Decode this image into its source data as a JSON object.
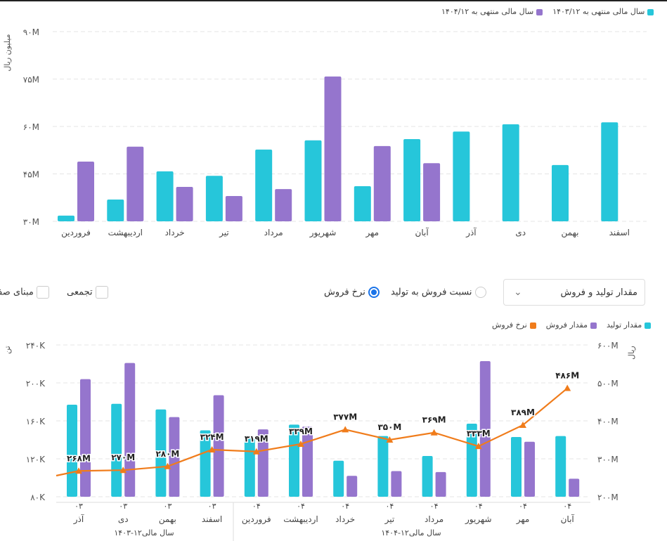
{
  "colors": {
    "cyan": "#26c6da",
    "purple": "#9575cd",
    "orange": "#f07c1b",
    "grid": "#e5e5e5"
  },
  "chart_data": [
    {
      "type": "bar",
      "legend": [
        "سال مالی منتهی به ۱۴۰۴/۱۲",
        "سال مالی منتهی به ۱۴۰۳/۱۲"
      ],
      "legend_position": "top-right",
      "ylabel": "میلیون ریال",
      "yticks": [
        "۳۰M",
        "۴۵M",
        "۶۰M",
        "۷۵M",
        "۹۰M"
      ],
      "ylim": [
        30,
        90
      ],
      "categories": [
        "فروردین",
        "اردیبهشت",
        "خرداد",
        "تیر",
        "مرداد",
        "شهریور",
        "مهر",
        "آبان",
        "آذر",
        "دی",
        "بهمن",
        "اسفند"
      ],
      "series": [
        {
          "name": "سال مالی منتهی به ۱۴۰۳/۱۲",
          "color": "#26c6da",
          "values": [
            31.8,
            36.9,
            45.8,
            44.4,
            52.7,
            55.6,
            41.1,
            56,
            58.4,
            60.7,
            47.8,
            61.3
          ]
        },
        {
          "name": "سال مالی منتهی به ۱۴۰۴/۱۲",
          "color": "#9575cd",
          "values": [
            48.9,
            53.6,
            40.9,
            38,
            40.2,
            75.8,
            53.8,
            48.4,
            null,
            null,
            null,
            null
          ]
        }
      ],
      "grid": true
    },
    {
      "type": "bar+line",
      "legend": [
        "مقدار تولید",
        "مقدار فروش",
        "نرخ فروش"
      ],
      "legend_position": "top-right",
      "ylabel_left": "تن",
      "ylabel_right": "ریال",
      "yticks_left": [
        "۸۰K",
        "۱۲۰K",
        "۱۶۰K",
        "۲۰۰K",
        "۲۴۰K"
      ],
      "yticks_right": [
        "۲۰۰M",
        "۳۰۰M",
        "۴۰۰M",
        "۵۰۰M",
        "۶۰۰M"
      ],
      "ylim_left": [
        80,
        240
      ],
      "ylim_right": [
        200,
        600
      ],
      "categories": [
        {
          "year": "۰۳",
          "month": "آذر"
        },
        {
          "year": "۰۳",
          "month": "دی"
        },
        {
          "year": "۰۳",
          "month": "بهمن"
        },
        {
          "year": "۰۳",
          "month": "اسفند"
        },
        {
          "year": "۰۴",
          "month": "فروردین"
        },
        {
          "year": "۰۴",
          "month": "اردیبهشت"
        },
        {
          "year": "۰۴",
          "month": "خرداد"
        },
        {
          "year": "۰۴",
          "month": "تیر"
        },
        {
          "year": "۰۴",
          "month": "مرداد"
        },
        {
          "year": "۰۴",
          "month": "شهریور"
        },
        {
          "year": "۰۴",
          "month": "مهر"
        },
        {
          "year": "۰۴",
          "month": "آبان"
        }
      ],
      "groups": [
        "سال مالی۱۲-۱۴۰۳",
        "سال مالی۱۲-۱۴۰۴"
      ],
      "series": [
        {
          "name": "مقدار تولید",
          "color": "#26c6da",
          "axis": "left",
          "values": [
            177,
            178,
            172,
            150,
            142,
            156,
            118,
            144,
            123,
            157,
            143,
            144
          ]
        },
        {
          "name": "مقدار فروش",
          "color": "#9575cd",
          "axis": "left",
          "values": [
            204,
            221,
            164,
            187,
            151,
            154,
            102,
            107,
            106,
            223,
            138,
            99
          ]
        },
        {
          "name": "نرخ فروش",
          "color": "#f07c1b",
          "axis": "right",
          "values": [
            268,
            270,
            280,
            324,
            319,
            339,
            377,
            350,
            369,
            333,
            389,
            486
          ],
          "labels": [
            "۲۶۸M",
            "۲۷۰M",
            "۲۸۰M",
            "۳۲۴M",
            "۳۱۹M",
            "۳۳۹M",
            "۳۷۷M",
            "۳۵۰M",
            "۳۶۹M",
            "۳۳۳M",
            "۳۸۹M",
            "۴۸۶M"
          ]
        }
      ],
      "grid": true
    }
  ],
  "controls": {
    "dropdown_value": "مقدار تولید و فروش",
    "radio_ratio": "نسبت فروش به تولید",
    "radio_rate": "نرخ فروش",
    "selected_radio": "نرخ فروش",
    "checkbox_cumulative": "تجمعی",
    "checkbox_zero_base": "مبنای صفر"
  }
}
